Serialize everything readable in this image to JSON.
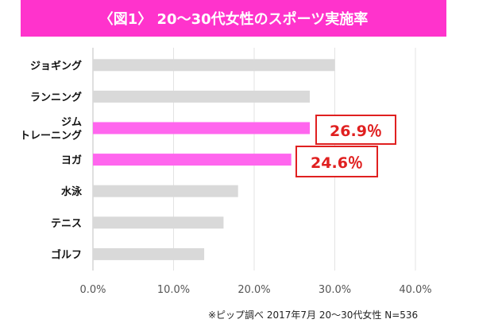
{
  "chart_data": {
    "type": "bar",
    "orientation": "horizontal",
    "title": "〈図1〉 20〜30代女性のスポーツ実施率",
    "categories": [
      [
        "ジョギング"
      ],
      [
        "ランニング"
      ],
      [
        "ジム",
        "トレーニング"
      ],
      [
        "ヨガ"
      ],
      [
        "水泳"
      ],
      [
        "テニス"
      ],
      [
        "ゴルフ"
      ]
    ],
    "values": [
      30.0,
      26.9,
      26.9,
      24.6,
      18.0,
      16.2,
      13.8
    ],
    "highlight": [
      false,
      false,
      true,
      true,
      false,
      false,
      false
    ],
    "xlim": [
      0,
      40
    ],
    "xticks": [
      "0.0%",
      "10.0%",
      "20.0%",
      "30.0%",
      "40.0%"
    ],
    "grid": true,
    "colors": {
      "default": "#d9d9d9",
      "highlight": "#ff66ee",
      "callout": "#e02020",
      "title_bg": "#ff33cc"
    },
    "annotations": [
      {
        "category_index": 2,
        "text": "26.9％"
      },
      {
        "category_index": 3,
        "text": "24.6％"
      }
    ],
    "source": "※ピップ調べ 2017年7月 20〜30代女性 N=536"
  }
}
